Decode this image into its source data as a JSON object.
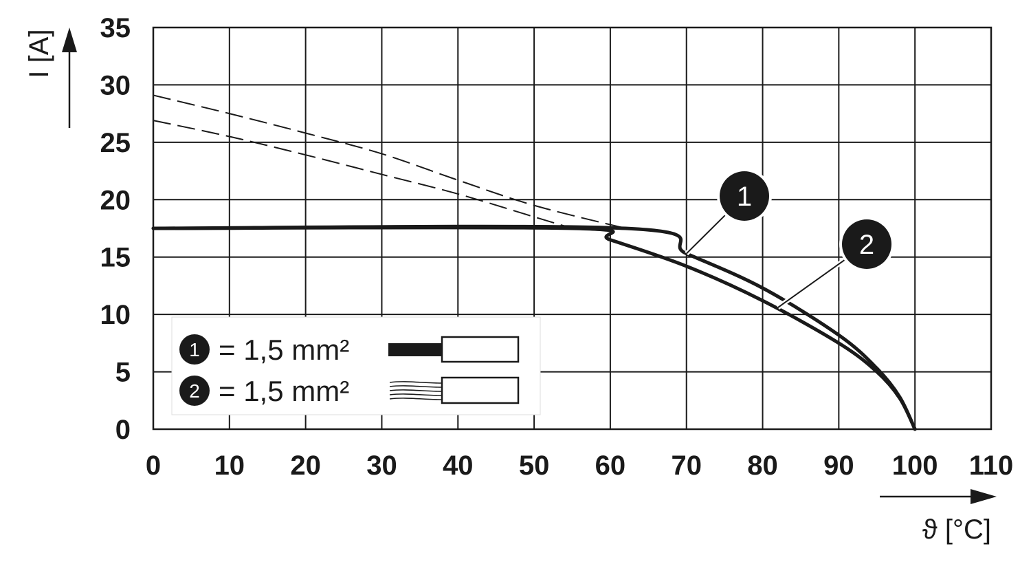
{
  "chart_data": {
    "type": "line",
    "xlabel": "ϑ [°C]",
    "ylabel": "I [A]",
    "xlim": [
      0,
      110
    ],
    "ylim": [
      0,
      35
    ],
    "x_ticks": [
      "0",
      "10",
      "20",
      "30",
      "40",
      "50",
      "60",
      "70",
      "80",
      "90",
      "100",
      "110"
    ],
    "y_ticks": [
      "0",
      "5",
      "10",
      "15",
      "20",
      "25",
      "30",
      "35"
    ],
    "grid": true,
    "legend_position": "bottom-left",
    "series": [
      {
        "marker": "1",
        "legend_text": "= 1,5 mm²",
        "conductor": "solid",
        "solid_points": [
          [
            0,
            17.5
          ],
          [
            62,
            17.5
          ],
          [
            70,
            15.3
          ],
          [
            80,
            12.3
          ],
          [
            90,
            8.2
          ],
          [
            95,
            5.3
          ],
          [
            98,
            2.8
          ],
          [
            100,
            0
          ]
        ],
        "dashed_points": [
          [
            0,
            29.1
          ],
          [
            10,
            27.5
          ],
          [
            20,
            25.8
          ],
          [
            30,
            24.0
          ],
          [
            40,
            21.7
          ],
          [
            50,
            19.5
          ],
          [
            62,
            17.5
          ]
        ]
      },
      {
        "marker": "2",
        "legend_text": "= 1,5 mm²",
        "conductor": "stranded",
        "solid_points": [
          [
            0,
            17.5
          ],
          [
            55,
            17.5
          ],
          [
            60,
            16.5
          ],
          [
            70,
            14.2
          ],
          [
            80,
            11.2
          ],
          [
            90,
            7.5
          ],
          [
            95,
            5.0
          ],
          [
            98,
            2.7
          ],
          [
            100,
            0
          ]
        ],
        "dashed_points": [
          [
            0,
            26.9
          ],
          [
            10,
            25.5
          ],
          [
            20,
            23.9
          ],
          [
            30,
            22.2
          ],
          [
            40,
            20.5
          ],
          [
            50,
            18.5
          ],
          [
            55,
            17.5
          ]
        ]
      }
    ]
  }
}
